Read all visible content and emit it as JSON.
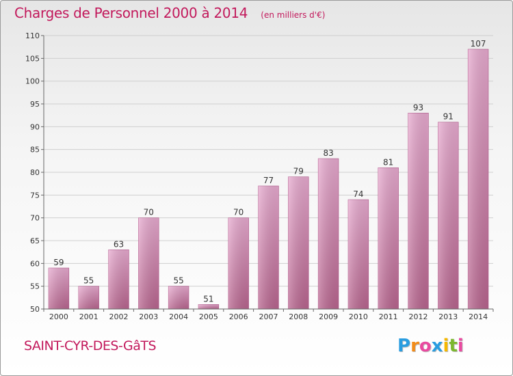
{
  "chart_data": {
    "type": "bar",
    "title": "Charges de Personnel 2000 à 2014",
    "unit_note": "(en milliers d'€)",
    "categories": [
      "2000",
      "2001",
      "2002",
      "2003",
      "2004",
      "2005",
      "2006",
      "2007",
      "2008",
      "2009",
      "2010",
      "2011",
      "2012",
      "2013",
      "2014"
    ],
    "values": [
      59,
      55,
      63,
      70,
      55,
      51,
      70,
      77,
      79,
      83,
      74,
      81,
      93,
      91,
      107
    ],
    "ylim": [
      50,
      110
    ],
    "yticks": [
      50,
      55,
      60,
      65,
      70,
      75,
      80,
      85,
      90,
      95,
      100,
      105,
      110
    ],
    "grid": true,
    "bar_color": "#e2a2c8",
    "accent_color": "#c2185b"
  },
  "footer": {
    "commune": "SAINT-CYR-DES-GâTS",
    "brand_letters": [
      {
        "ch": "P",
        "color": "#2a9de0"
      },
      {
        "ch": "r",
        "color": "#f28c1a"
      },
      {
        "ch": "o",
        "color": "#e94aa0"
      },
      {
        "ch": "x",
        "color": "#2a9de0"
      },
      {
        "ch": "i",
        "color": "#f5b800"
      },
      {
        "ch": "t",
        "color": "#7cb82f"
      },
      {
        "ch": "i",
        "color": "#e94aa0"
      }
    ]
  }
}
